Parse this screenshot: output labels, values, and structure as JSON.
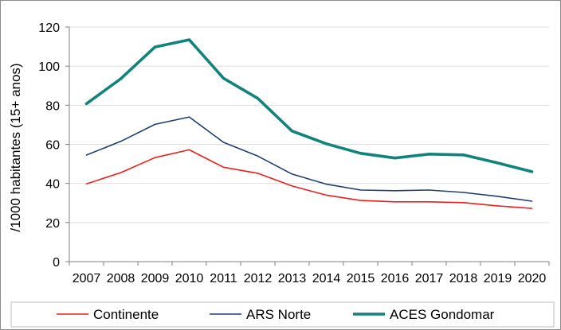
{
  "chart_data": {
    "type": "line",
    "categories": [
      "2007",
      "2008",
      "2009",
      "2010",
      "2011",
      "2012",
      "2013",
      "2014",
      "2015",
      "2016",
      "2017",
      "2018",
      "2019",
      "2020"
    ],
    "ylabel": "/1000 habitantes (15+ anos)",
    "xlabel": "",
    "ylim": [
      0,
      120
    ],
    "yticks": [
      0,
      20,
      40,
      60,
      80,
      100,
      120
    ],
    "grid": true,
    "legend_position": "bottom",
    "series": [
      {
        "name": "Continente",
        "color": "#e8201f",
        "width": 1.6,
        "values": [
          39.8,
          45.5,
          53.2,
          57.2,
          48.3,
          45.2,
          38.7,
          34.0,
          31.3,
          30.6,
          30.6,
          30.2,
          28.5,
          27.2
        ]
      },
      {
        "name": "ARS Norte",
        "color": "#1f3f6b",
        "width": 1.6,
        "values": [
          54.5,
          61.5,
          70.2,
          74.0,
          61.0,
          54.0,
          44.8,
          39.6,
          36.6,
          36.3,
          36.6,
          35.4,
          33.4,
          30.9
        ]
      },
      {
        "name": "ACES Gondomar",
        "color": "#12837a",
        "width": 3.6,
        "values": [
          80.8,
          93.5,
          109.8,
          113.5,
          93.8,
          83.5,
          66.8,
          60.3,
          55.4,
          53.0,
          55.0,
          54.6,
          50.5,
          46.0
        ]
      }
    ]
  }
}
